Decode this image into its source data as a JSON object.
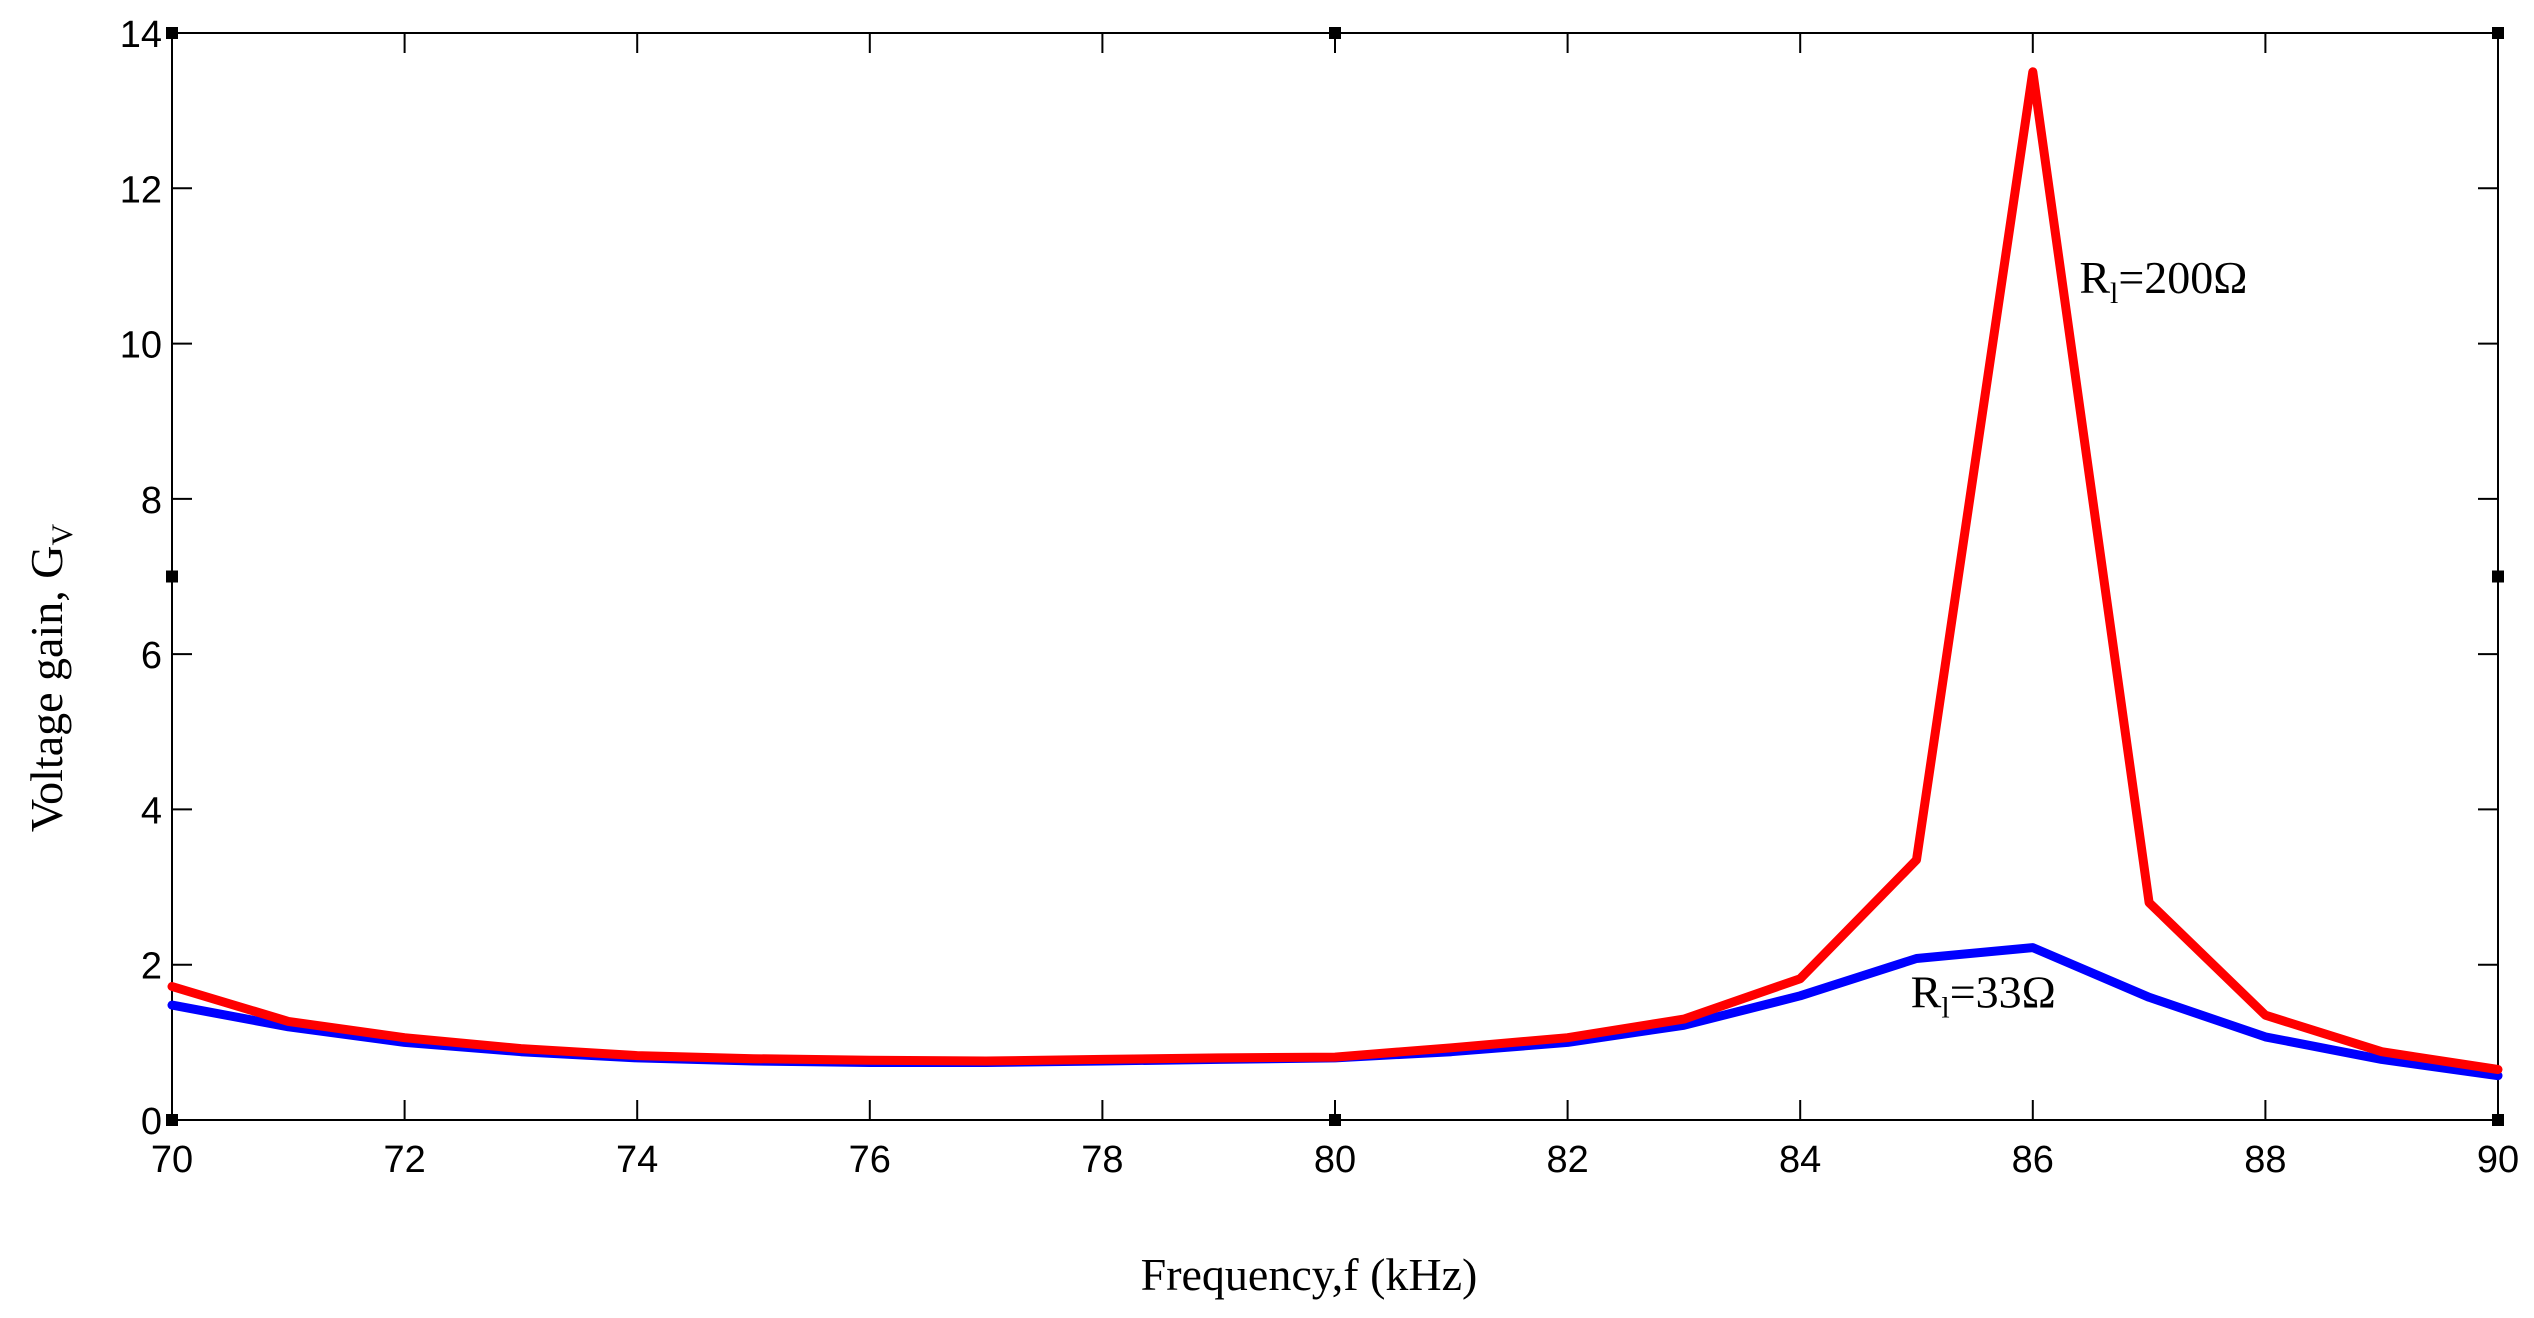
{
  "chart_data": {
    "type": "line",
    "title": "",
    "xlabel": "Frequency,f (kHz)",
    "ylabel": "Voltage gain, G",
    "ylabel_sub": "V",
    "xlim": [
      70,
      90
    ],
    "ylim": [
      0,
      14
    ],
    "xticks": [
      70,
      72,
      74,
      76,
      78,
      80,
      82,
      84,
      86,
      88,
      90
    ],
    "yticks": [
      0,
      2,
      4,
      6,
      8,
      10,
      12,
      14
    ],
    "grid": false,
    "x": [
      70,
      71,
      72,
      73,
      74,
      75,
      76,
      77,
      78,
      79,
      80,
      81,
      82,
      83,
      84,
      85,
      86,
      87,
      88,
      89,
      90
    ],
    "series": [
      {
        "name": "R_l=33Ω",
        "color": "#0000ff",
        "values": [
          1.48,
          1.2,
          1.0,
          0.88,
          0.8,
          0.76,
          0.74,
          0.74,
          0.76,
          0.78,
          0.8,
          0.88,
          1.0,
          1.22,
          1.6,
          2.08,
          2.22,
          1.58,
          1.07,
          0.78,
          0.57
        ]
      },
      {
        "name": "R_l=200Ω",
        "color": "#ff0000",
        "values": [
          1.72,
          1.27,
          1.06,
          0.92,
          0.83,
          0.79,
          0.77,
          0.76,
          0.78,
          0.8,
          0.81,
          0.93,
          1.06,
          1.3,
          1.82,
          3.35,
          13.5,
          2.8,
          1.35,
          0.88,
          0.65
        ]
      }
    ],
    "annotations": [
      {
        "id": "r200",
        "prefix": "R",
        "sub": "l",
        "suffix": "=200Ω",
        "x": 86.4,
        "y": 10.65
      },
      {
        "id": "r33",
        "prefix": "R",
        "sub": "l",
        "suffix": "=33Ω",
        "x": 84.95,
        "y": 1.45
      }
    ]
  }
}
